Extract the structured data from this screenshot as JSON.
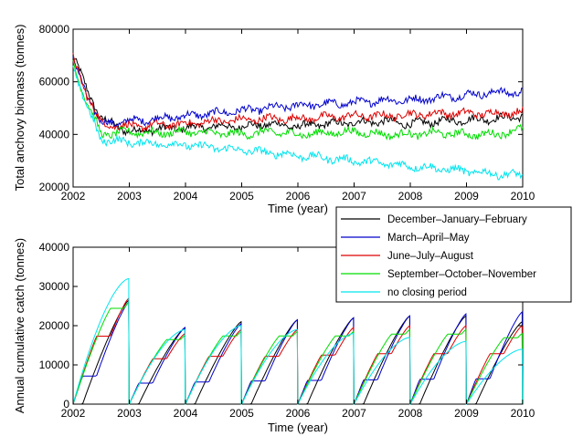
{
  "chart_data": [
    {
      "type": "line",
      "xlabel": "Time (year)",
      "ylabel": "Total anchovy biomass (tonnes)",
      "xlim": [
        2002,
        2010
      ],
      "ylim": [
        20000,
        80000
      ],
      "xticks": [
        2002,
        2003,
        2004,
        2005,
        2006,
        2007,
        2008,
        2009,
        2010
      ],
      "yticks": [
        20000,
        40000,
        60000,
        80000
      ],
      "grid": false,
      "series": [
        {
          "name": "December–January–February",
          "color": "#000000",
          "x": [
            2002.0,
            2002.25,
            2002.5,
            2003.0,
            2003.5,
            2004.0,
            2004.5,
            2005.0,
            2005.5,
            2006.0,
            2006.5,
            2007.0,
            2007.5,
            2008.0,
            2008.5,
            2009.0,
            2009.5,
            2010.0
          ],
          "y": [
            70000,
            57000,
            46000,
            41000,
            42000,
            42500,
            43000,
            43000,
            44000,
            43000,
            44000,
            44500,
            45000,
            44000,
            45000,
            45500,
            46000,
            47000
          ]
        },
        {
          "name": "March–April–May",
          "color": "#0000cc",
          "x": [
            2002.0,
            2002.25,
            2002.5,
            2003.0,
            2003.5,
            2004.0,
            2004.5,
            2005.0,
            2005.5,
            2006.0,
            2006.5,
            2007.0,
            2007.5,
            2008.0,
            2008.5,
            2009.0,
            2009.5,
            2010.0
          ],
          "y": [
            68000,
            55000,
            44000,
            45000,
            46000,
            47000,
            48000,
            49000,
            50000,
            51000,
            51500,
            52000,
            53000,
            53000,
            54000,
            55000,
            56000,
            56000
          ]
        },
        {
          "name": "June–July–August",
          "color": "#dd0000",
          "x": [
            2002.0,
            2002.25,
            2002.5,
            2003.0,
            2003.5,
            2004.0,
            2004.5,
            2005.0,
            2005.5,
            2006.0,
            2006.5,
            2007.0,
            2007.5,
            2008.0,
            2008.5,
            2009.0,
            2009.5,
            2010.0
          ],
          "y": [
            69000,
            55000,
            44000,
            43000,
            43500,
            44000,
            45000,
            45500,
            46000,
            46000,
            46500,
            47000,
            47000,
            47500,
            48000,
            48000,
            48000,
            48500
          ]
        },
        {
          "name": "September–October–November",
          "color": "#00dd00",
          "x": [
            2002.0,
            2002.25,
            2002.5,
            2003.0,
            2003.5,
            2004.0,
            2004.5,
            2005.0,
            2005.5,
            2006.0,
            2006.5,
            2007.0,
            2007.5,
            2008.0,
            2008.5,
            2009.0,
            2009.5,
            2010.0
          ],
          "y": [
            67000,
            52000,
            40000,
            41000,
            40500,
            41000,
            40500,
            40000,
            41000,
            40000,
            40500,
            41000,
            40000,
            40000,
            40500,
            40000,
            40000,
            42000
          ]
        },
        {
          "name": "no closing period",
          "color": "#00e5ee",
          "x": [
            2002.0,
            2002.25,
            2002.5,
            2003.0,
            2003.5,
            2004.0,
            2004.5,
            2005.0,
            2005.5,
            2006.0,
            2006.5,
            2007.0,
            2007.5,
            2008.0,
            2008.5,
            2009.0,
            2009.5,
            2010.0
          ],
          "y": [
            66000,
            50000,
            38000,
            37000,
            36500,
            36000,
            35000,
            34000,
            33000,
            32000,
            31000,
            30000,
            29000,
            28000,
            27000,
            26000,
            25000,
            24500
          ]
        }
      ]
    },
    {
      "type": "line",
      "xlabel": "Time (year)",
      "ylabel": "Annual cumulative catch (tonnes)",
      "xlim": [
        2002,
        2010
      ],
      "ylim": [
        0,
        40000
      ],
      "xticks": [
        2002,
        2003,
        2004,
        2005,
        2006,
        2007,
        2008,
        2009,
        2010
      ],
      "yticks": [
        0,
        10000,
        20000,
        30000,
        40000
      ],
      "grid": false,
      "legend_position": "top-right",
      "legend": [
        "December–January–February",
        "March–April–May",
        "June–July–August",
        "September–October–November",
        "no closing period"
      ],
      "annual_end_values": {
        "December–January–February": [
          26500,
          19500,
          21000,
          21500,
          22000,
          22500,
          22500,
          21000
        ],
        "March–April–May": [
          26000,
          19500,
          20500,
          21500,
          22000,
          22500,
          23000,
          23500
        ],
        "June–July–August": [
          27000,
          18000,
          19000,
          19000,
          19500,
          20000,
          20000,
          20000
        ],
        "September–October–November": [
          26000,
          17500,
          18500,
          18500,
          18500,
          19000,
          19000,
          18000
        ],
        "no closing period": [
          32000,
          19000,
          20000,
          19000,
          18000,
          17000,
          16000,
          14000
        ]
      }
    }
  ]
}
